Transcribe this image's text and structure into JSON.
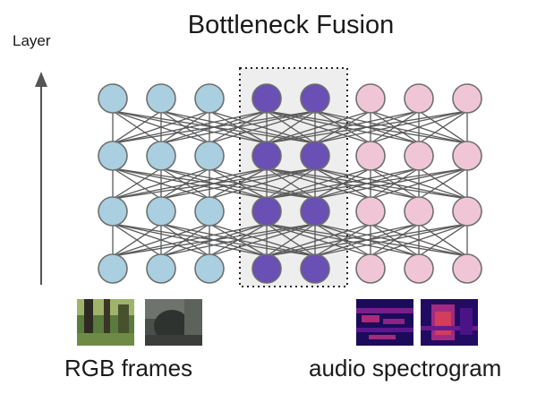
{
  "diagram": {
    "title": "Bottleneck Fusion",
    "y_axis_label": "Layer",
    "left_caption": "RGB frames",
    "right_caption": "audio spectrogram",
    "rows": 4,
    "rgb_tokens_per_row": 3,
    "bottleneck_tokens_per_row": 2,
    "audio_tokens_per_row": 3
  },
  "colors": {
    "rgb_token": "#a9cfe0",
    "bottleneck_token": "#6a4fb5",
    "audio_token": "#f0c6d6",
    "node_stroke": "#6f6f6f",
    "edge": "#5a5a5a",
    "bottleneck_panel": "#eeeeee",
    "arrow": "#555555"
  }
}
